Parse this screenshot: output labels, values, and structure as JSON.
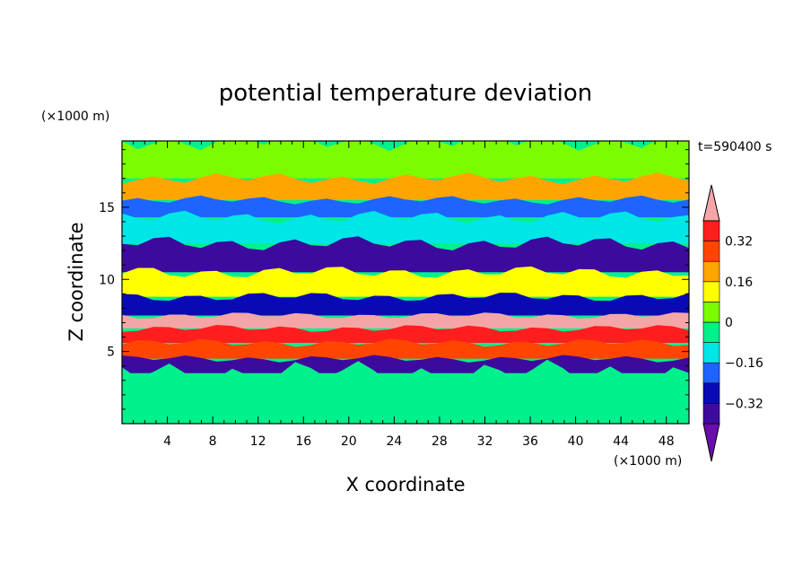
{
  "chart_data": {
    "type": "heatmap",
    "title": "potential temperature deviation",
    "xlabel": "X coordinate",
    "ylabel": "Z coordinate",
    "x_unit_label": "(×1000 m)",
    "y_unit_label": "(×1000 m)",
    "time_label": "t=590400 s",
    "xlim": [
      0,
      50
    ],
    "ylim": [
      0,
      19.6
    ],
    "x_ticks": [
      4,
      8,
      12,
      16,
      20,
      24,
      28,
      32,
      36,
      40,
      44,
      48
    ],
    "y_ticks": [
      5,
      10,
      15
    ],
    "x_tick_labels": [
      "4",
      "8",
      "12",
      "16",
      "20",
      "24",
      "28",
      "32",
      "36",
      "40",
      "44",
      "48"
    ],
    "y_tick_labels": [
      "5",
      "10",
      "15"
    ],
    "colorbar": {
      "levels": [
        -0.4,
        -0.32,
        -0.24,
        -0.16,
        -0.08,
        0,
        0.08,
        0.16,
        0.24,
        0.32,
        0.4
      ],
      "labels": [
        "0.32",
        "0.16",
        "0",
        "−0.16",
        "−0.32"
      ],
      "label_values": [
        0.32,
        0.16,
        0,
        -0.16,
        -0.32
      ],
      "colors": [
        "#6a0dad",
        "#3d0a9e",
        "#0a0ab4",
        "#1e64ff",
        "#00e6e6",
        "#00f08c",
        "#7cfc00",
        "#ffff00",
        "#ffa500",
        "#ff4500",
        "#ff1e1e",
        "#f4a6a6"
      ],
      "extend": "both"
    },
    "field_bands": [
      {
        "z": [
          17.0,
          19.6
        ],
        "class": 6
      },
      {
        "z": [
          15.5,
          17.0
        ],
        "class": 8
      },
      {
        "z": [
          14.3,
          15.5
        ],
        "class": 3
      },
      {
        "z": [
          12.5,
          14.3
        ],
        "class": 4
      },
      {
        "z": [
          10.5,
          12.5
        ],
        "class": 1
      },
      {
        "z": [
          8.8,
          10.5
        ],
        "class": 7
      },
      {
        "z": [
          7.5,
          8.8
        ],
        "class": 2
      },
      {
        "z": [
          6.6,
          7.5
        ],
        "class": 11
      },
      {
        "z": [
          5.6,
          6.6
        ],
        "class": 10
      },
      {
        "z": [
          4.5,
          5.6
        ],
        "class": 9
      },
      {
        "z": [
          3.5,
          4.5
        ],
        "class": 1
      },
      {
        "z": [
          0,
          3.5
        ],
        "class": 5
      }
    ]
  }
}
